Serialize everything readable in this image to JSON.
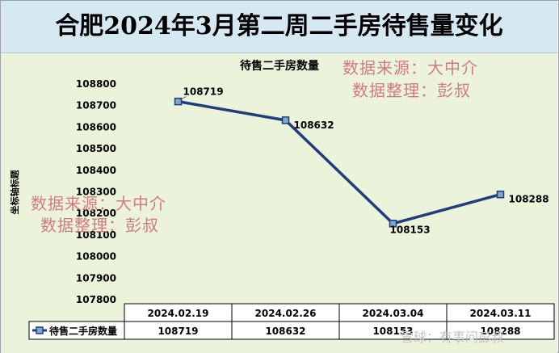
{
  "header": {
    "title": "合肥2024年3月第二周二手房待售量变化"
  },
  "watermarks": {
    "source_line": "数据来源：大中介",
    "editor_line": "数据整理：彭叔",
    "platform": "雪球：有事问彭叔"
  },
  "chart_data": {
    "type": "line",
    "title": "待售二手房数量",
    "ylabel": "坐标轴标题",
    "xlabel": "",
    "ylim": [
      107800,
      108800
    ],
    "yticks": [
      107800,
      107900,
      108000,
      108100,
      108200,
      108300,
      108400,
      108500,
      108600,
      108700,
      108800
    ],
    "categories": [
      "2024.02.19",
      "2024.02.26",
      "2024.03.04",
      "2024.03.11"
    ],
    "series": [
      {
        "name": "待售二手房数量",
        "values": [
          108719,
          108632,
          108153,
          108288
        ],
        "color": "#1f3e7a"
      }
    ],
    "data_labels": [
      "108719",
      "108632",
      "108153",
      "108288"
    ],
    "data_table": true,
    "grid": false
  }
}
